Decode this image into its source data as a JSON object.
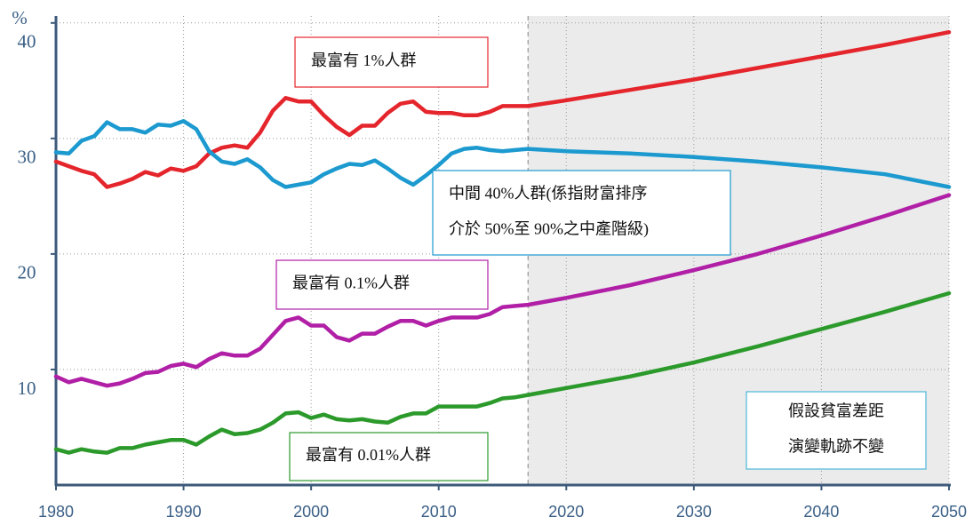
{
  "chart_data": {
    "type": "line",
    "y_unit": "%",
    "x": [
      1980,
      1981,
      1982,
      1983,
      1984,
      1985,
      1986,
      1987,
      1988,
      1989,
      1990,
      1991,
      1992,
      1993,
      1994,
      1995,
      1996,
      1997,
      1998,
      1999,
      2000,
      2001,
      2002,
      2003,
      2004,
      2005,
      2006,
      2007,
      2008,
      2009,
      2010,
      2011,
      2012,
      2013,
      2014,
      2015,
      2016,
      2017,
      2020,
      2025,
      2030,
      2035,
      2040,
      2045,
      2050
    ],
    "series": [
      {
        "name": "最富有 1%人群",
        "color": "#e5252c",
        "values": [
          28.0,
          27.6,
          27.2,
          26.9,
          25.8,
          26.1,
          26.5,
          27.1,
          26.8,
          27.4,
          27.2,
          27.6,
          28.7,
          29.2,
          29.4,
          29.2,
          30.5,
          32.4,
          33.5,
          33.2,
          33.2,
          32.0,
          31.0,
          30.3,
          31.1,
          31.1,
          32.2,
          33.0,
          33.2,
          32.3,
          32.2,
          32.2,
          32.0,
          32.0,
          32.3,
          32.8,
          32.8,
          32.8,
          33.3,
          34.2,
          35.1,
          36.1,
          37.1,
          38.1,
          39.2
        ]
      },
      {
        "name": "中間 40%人群(係指財富排序",
        "color": "#1c9ad0",
        "values": [
          28.8,
          28.7,
          29.8,
          30.2,
          31.4,
          30.8,
          30.8,
          30.5,
          31.2,
          31.1,
          31.5,
          30.8,
          28.9,
          28.0,
          27.8,
          28.2,
          27.5,
          26.4,
          25.8,
          26.0,
          26.2,
          26.9,
          27.4,
          27.8,
          27.7,
          28.1,
          27.4,
          26.6,
          26.0,
          26.8,
          27.7,
          28.7,
          29.1,
          29.2,
          29.0,
          28.9,
          29.0,
          29.1,
          28.9,
          28.7,
          28.4,
          28.0,
          27.5,
          26.9,
          25.8
        ]
      },
      {
        "name": "最富有 0.1%人群",
        "color": "#b01fa6",
        "values": [
          9.4,
          8.9,
          9.2,
          8.9,
          8.6,
          8.8,
          9.2,
          9.7,
          9.8,
          10.3,
          10.5,
          10.2,
          10.9,
          11.4,
          11.2,
          11.2,
          11.8,
          13.0,
          14.2,
          14.5,
          13.8,
          13.8,
          12.8,
          12.5,
          13.1,
          13.1,
          13.7,
          14.2,
          14.2,
          13.8,
          14.2,
          14.5,
          14.5,
          14.5,
          14.8,
          15.4,
          15.5,
          15.6,
          16.2,
          17.3,
          18.6,
          20.0,
          21.6,
          23.3,
          25.1
        ]
      },
      {
        "name": "最富有 0.01%人群",
        "color": "#2b9a2b",
        "values": [
          3.1,
          2.8,
          3.1,
          2.9,
          2.8,
          3.2,
          3.2,
          3.5,
          3.7,
          3.9,
          3.9,
          3.5,
          4.2,
          4.8,
          4.4,
          4.5,
          4.8,
          5.4,
          6.2,
          6.3,
          5.8,
          6.1,
          5.7,
          5.6,
          5.7,
          5.5,
          5.4,
          5.9,
          6.2,
          6.2,
          6.8,
          6.8,
          6.8,
          6.8,
          7.1,
          7.5,
          7.6,
          7.8,
          8.4,
          9.4,
          10.6,
          12.0,
          13.5,
          15.0,
          16.6
        ]
      }
    ],
    "annotations": [
      {
        "lines": [
          "最富有 1%人群"
        ],
        "color": "#e5252c"
      },
      {
        "lines": [
          "中間 40%人群(係指財富排序",
          "介於 50%至 90%之中產階級)"
        ],
        "color": "#1c9ad0"
      },
      {
        "lines": [
          "最富有 0.1%人群"
        ],
        "color": "#b01fa6"
      },
      {
        "lines": [
          "最富有 0.01%人群"
        ],
        "color": "#2b9a2b"
      },
      {
        "lines": [
          "假設貧富差距",
          "演變軌跡不變"
        ],
        "color": "#4bb8d8"
      }
    ],
    "forecast_from": 2017,
    "xlim": [
      1980,
      2050
    ],
    "xticks": [
      1980,
      1990,
      2000,
      2010,
      2020,
      2030,
      2040,
      2050
    ],
    "ylim": [
      0,
      40.6
    ],
    "yticks": [
      10,
      20,
      30,
      40
    ],
    "grid": true
  }
}
